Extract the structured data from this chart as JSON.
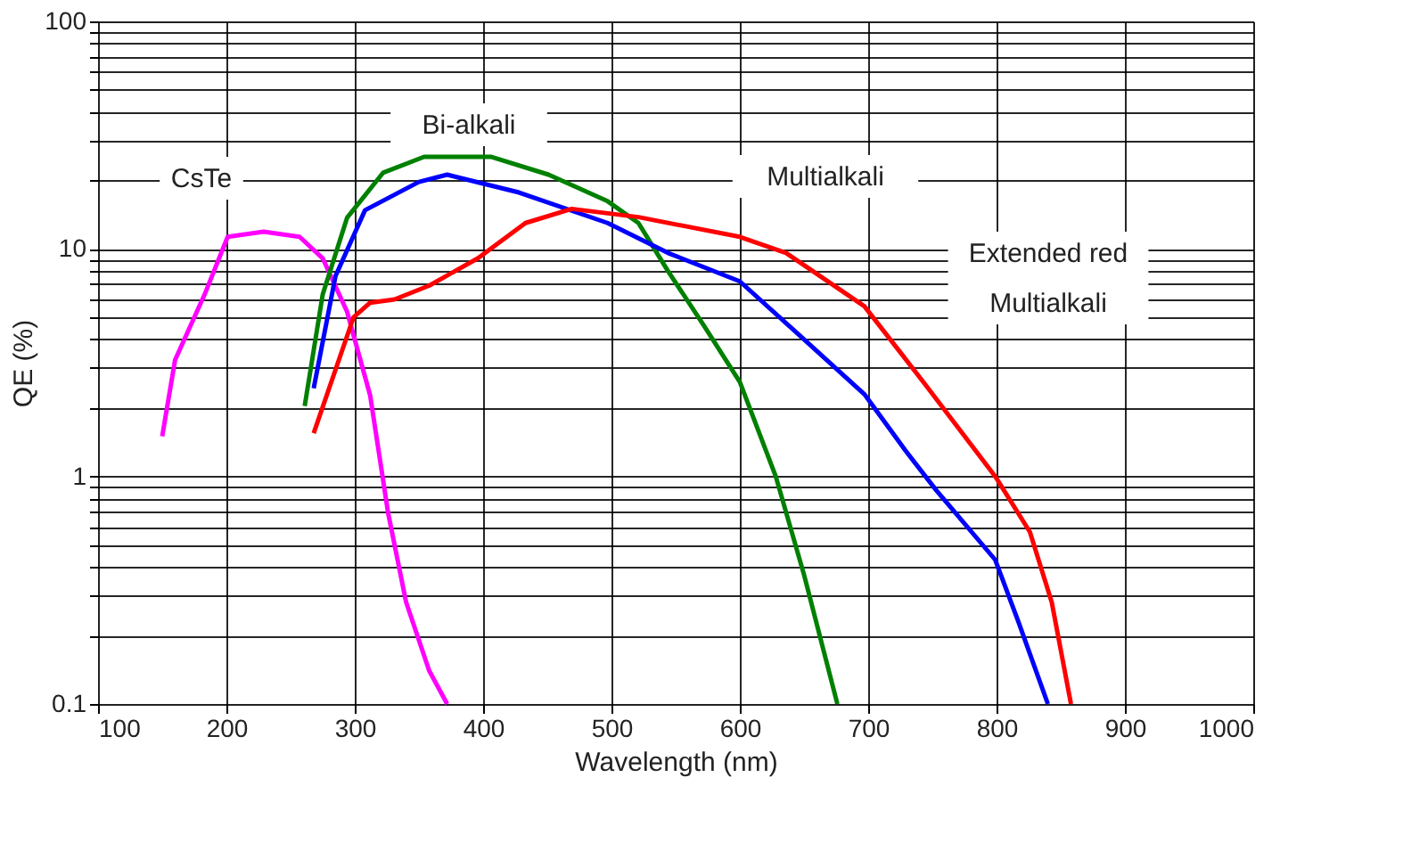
{
  "chart_data": {
    "type": "line",
    "xlabel": "Wavelength (nm)",
    "ylabel": "QE (%)",
    "xlim": [
      100,
      1000
    ],
    "xticks": [
      100,
      200,
      300,
      400,
      500,
      600,
      700,
      800,
      900,
      1000
    ],
    "ylim": [
      0.1,
      100
    ],
    "yticks": [
      0.1,
      1,
      10,
      100
    ],
    "log": "y",
    "grid": true,
    "legend": false,
    "marker": "none",
    "line_style": "solid",
    "series": [
      {
        "color": "#ff00ff",
        "x": [
          150,
          160,
          183,
          201,
          229,
          257,
          275,
          294,
          312,
          326,
          340,
          358,
          372
        ],
        "values": [
          1.5,
          3.25,
          6.3,
          11.3,
          11.9,
          11.3,
          9.1,
          5.3,
          2.27,
          0.69,
          0.28,
          0.14,
          0.1
        ]
      },
      {
        "color": "#008000",
        "x": [
          261,
          275,
          294,
          322,
          354,
          406,
          451,
          497,
          521,
          544,
          572,
          600,
          628,
          650,
          676
        ],
        "values": [
          2.04,
          6.3,
          13.7,
          21.6,
          25.4,
          25.4,
          21.2,
          16.2,
          13.0,
          8.0,
          4.6,
          2.6,
          1.0,
          0.37,
          0.1
        ]
      },
      {
        "color": "#0000ff",
        "x": [
          268,
          285,
          308,
          350,
          372,
          428,
          497,
          544,
          600,
          646,
          697,
          729,
          753,
          799,
          817,
          840
        ],
        "values": [
          2.44,
          7.6,
          14.8,
          19.7,
          21.2,
          17.7,
          13.0,
          9.6,
          7.2,
          4.2,
          2.3,
          1.3,
          0.87,
          0.43,
          0.23,
          0.1
        ]
      },
      {
        "color": "#ff0000",
        "x": [
          268,
          299,
          312,
          331,
          358,
          396,
          433,
          469,
          521,
          600,
          636,
          697,
          743,
          799,
          826,
          843,
          858
        ],
        "values": [
          1.55,
          5.0,
          5.8,
          6.0,
          6.9,
          9.1,
          13,
          15.0,
          13.8,
          11.3,
          9.6,
          5.6,
          2.6,
          1.0,
          0.57,
          0.28,
          0.1
        ]
      }
    ],
    "annotations": [
      "CsTe",
      "Bi-alkali",
      "Multialkali",
      "Extended red\nMultialkali"
    ]
  }
}
